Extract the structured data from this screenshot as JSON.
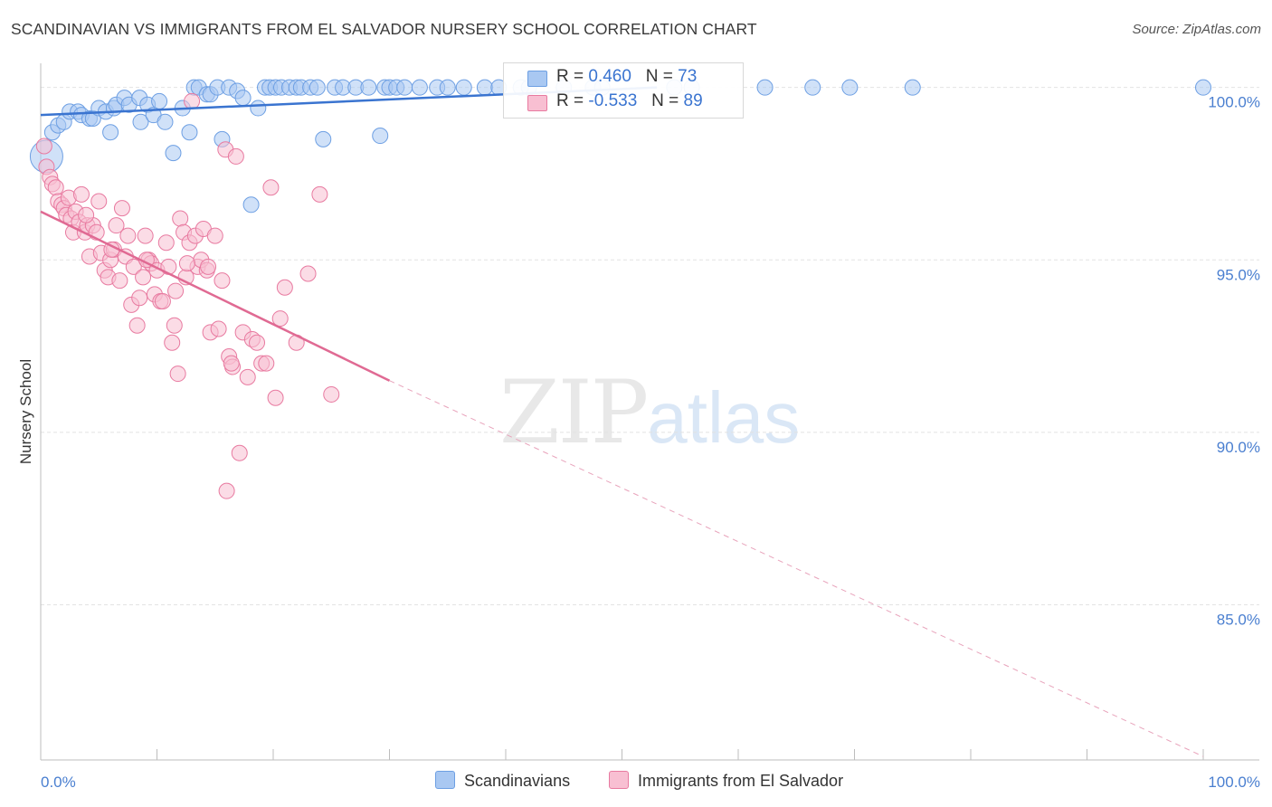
{
  "title": "SCANDINAVIAN VS IMMIGRANTS FROM EL SALVADOR NURSERY SCHOOL CORRELATION CHART",
  "source": "Source: ZipAtlas.com",
  "watermark": {
    "zip": "ZIP",
    "atlas": "atlas"
  },
  "legend_box": {
    "rows": [
      {
        "r_label": "R =",
        "r_value": "0.460",
        "n_label": "N =",
        "n_value": "73",
        "color": "#a9c8f2"
      },
      {
        "r_label": "R =",
        "r_value": "-0.533",
        "n_label": "N =",
        "n_value": "89",
        "color": "#f8bfd2"
      }
    ]
  },
  "bottom_legend": [
    "Scandinavians",
    "Immigrants from El Salvador"
  ],
  "chart_data": {
    "type": "scatter",
    "title": "SCANDINAVIAN VS IMMIGRANTS FROM EL SALVADOR NURSERY SCHOOL CORRELATION CHART",
    "xlabel": "",
    "ylabel": "Nursery School",
    "xlim": [
      0,
      100
    ],
    "ylim": [
      80.5,
      100.7
    ],
    "x_tick_labels": [
      "0.0%",
      "100.0%"
    ],
    "y_ticks": [
      100,
      95,
      90,
      85
    ],
    "y_tick_labels": [
      "100.0%",
      "95.0%",
      "90.0%",
      "85.0%"
    ],
    "grid": true,
    "series": [
      {
        "name": "Scandinavians",
        "color": "#6d9fe3",
        "fill": "#a9c8f2",
        "points": [
          [
            0.5,
            98.0
          ],
          [
            1.0,
            98.7
          ],
          [
            1.5,
            98.9
          ],
          [
            2.0,
            99.0
          ],
          [
            2.5,
            99.3
          ],
          [
            3.2,
            99.3
          ],
          [
            3.5,
            99.2
          ],
          [
            4.2,
            99.1
          ],
          [
            4.5,
            99.1
          ],
          [
            5.0,
            99.4
          ],
          [
            5.6,
            99.3
          ],
          [
            6.0,
            98.7
          ],
          [
            6.3,
            99.4
          ],
          [
            6.5,
            99.5
          ],
          [
            7.2,
            99.7
          ],
          [
            7.6,
            99.5
          ],
          [
            8.5,
            99.7
          ],
          [
            8.6,
            99.0
          ],
          [
            9.2,
            99.5
          ],
          [
            9.7,
            99.2
          ],
          [
            10.2,
            99.6
          ],
          [
            10.7,
            99.0
          ],
          [
            11.4,
            98.1
          ],
          [
            12.2,
            99.4
          ],
          [
            12.8,
            98.7
          ],
          [
            13.2,
            100.0
          ],
          [
            13.6,
            100.0
          ],
          [
            14.3,
            99.8
          ],
          [
            14.6,
            99.8
          ],
          [
            15.2,
            100.0
          ],
          [
            15.6,
            98.5
          ],
          [
            16.2,
            100.0
          ],
          [
            16.9,
            99.9
          ],
          [
            17.4,
            99.7
          ],
          [
            18.1,
            96.6
          ],
          [
            18.7,
            99.4
          ],
          [
            19.3,
            100.0
          ],
          [
            19.7,
            100.0
          ],
          [
            20.2,
            100.0
          ],
          [
            20.7,
            100.0
          ],
          [
            21.4,
            100.0
          ],
          [
            22.0,
            100.0
          ],
          [
            22.4,
            100.0
          ],
          [
            23.2,
            100.0
          ],
          [
            23.8,
            100.0
          ],
          [
            24.3,
            98.5
          ],
          [
            25.3,
            100.0
          ],
          [
            26.0,
            100.0
          ],
          [
            27.1,
            100.0
          ],
          [
            28.2,
            100.0
          ],
          [
            29.2,
            98.6
          ],
          [
            29.6,
            100.0
          ],
          [
            30.0,
            100.0
          ],
          [
            30.6,
            100.0
          ],
          [
            31.3,
            100.0
          ],
          [
            32.6,
            100.0
          ],
          [
            34.1,
            100.0
          ],
          [
            35.0,
            100.0
          ],
          [
            36.4,
            100.0
          ],
          [
            38.2,
            100.0
          ],
          [
            39.4,
            100.0
          ],
          [
            41.3,
            100.0
          ],
          [
            42.0,
            100.0
          ],
          [
            45.0,
            100.0
          ],
          [
            47.5,
            100.0
          ],
          [
            48.3,
            100.0
          ],
          [
            56.0,
            100.0
          ],
          [
            62.3,
            100.0
          ],
          [
            66.4,
            100.0
          ],
          [
            69.6,
            100.0
          ],
          [
            75.0,
            100.0
          ],
          [
            100.0,
            100.0
          ],
          [
            54.5,
            100.0
          ]
        ],
        "trend": {
          "x": [
            0,
            53
          ],
          "y": [
            99.2,
            100.0
          ],
          "style": "solid"
        }
      },
      {
        "name": "Immigrants from El Salvador",
        "color": "#e87aa0",
        "fill": "#f8bfd2",
        "points": [
          [
            0.3,
            98.3
          ],
          [
            0.5,
            97.7
          ],
          [
            0.8,
            97.4
          ],
          [
            1.0,
            97.2
          ],
          [
            1.3,
            97.1
          ],
          [
            1.5,
            96.7
          ],
          [
            1.8,
            96.6
          ],
          [
            2.0,
            96.5
          ],
          [
            2.2,
            96.3
          ],
          [
            2.4,
            96.8
          ],
          [
            2.6,
            96.2
          ],
          [
            2.8,
            95.8
          ],
          [
            3.0,
            96.4
          ],
          [
            3.3,
            96.1
          ],
          [
            3.5,
            96.9
          ],
          [
            3.8,
            95.8
          ],
          [
            4.0,
            96.0
          ],
          [
            4.2,
            95.1
          ],
          [
            4.5,
            96.0
          ],
          [
            4.8,
            95.8
          ],
          [
            5.0,
            96.7
          ],
          [
            5.2,
            95.2
          ],
          [
            5.5,
            94.7
          ],
          [
            5.8,
            94.5
          ],
          [
            6.0,
            95.0
          ],
          [
            6.3,
            95.3
          ],
          [
            6.5,
            96.0
          ],
          [
            6.8,
            94.4
          ],
          [
            7.0,
            96.5
          ],
          [
            7.3,
            95.1
          ],
          [
            7.5,
            95.7
          ],
          [
            7.8,
            93.7
          ],
          [
            8.0,
            94.8
          ],
          [
            8.3,
            93.1
          ],
          [
            8.5,
            93.9
          ],
          [
            8.8,
            94.5
          ],
          [
            9.0,
            95.7
          ],
          [
            9.3,
            95.0
          ],
          [
            9.5,
            94.9
          ],
          [
            9.8,
            94.0
          ],
          [
            10.0,
            94.7
          ],
          [
            10.3,
            93.8
          ],
          [
            10.5,
            93.8
          ],
          [
            10.8,
            95.5
          ],
          [
            11.0,
            94.8
          ],
          [
            11.3,
            92.6
          ],
          [
            11.5,
            93.1
          ],
          [
            11.8,
            91.7
          ],
          [
            12.0,
            96.2
          ],
          [
            12.3,
            95.8
          ],
          [
            12.5,
            94.5
          ],
          [
            12.8,
            95.5
          ],
          [
            13.0,
            99.6
          ],
          [
            13.3,
            95.7
          ],
          [
            13.5,
            94.8
          ],
          [
            13.8,
            95.0
          ],
          [
            14.0,
            95.9
          ],
          [
            14.3,
            94.7
          ],
          [
            14.6,
            92.9
          ],
          [
            15.0,
            95.7
          ],
          [
            15.3,
            93.0
          ],
          [
            15.6,
            94.4
          ],
          [
            15.9,
            98.2
          ],
          [
            16.2,
            92.2
          ],
          [
            16.5,
            91.9
          ],
          [
            16.8,
            98.0
          ],
          [
            17.1,
            89.4
          ],
          [
            17.4,
            92.9
          ],
          [
            17.8,
            91.6
          ],
          [
            18.2,
            92.7
          ],
          [
            18.6,
            92.6
          ],
          [
            19.0,
            92.0
          ],
          [
            19.4,
            92.0
          ],
          [
            19.8,
            97.1
          ],
          [
            20.2,
            91.0
          ],
          [
            20.6,
            93.3
          ],
          [
            21.0,
            94.2
          ],
          [
            22.0,
            92.6
          ],
          [
            23.0,
            94.6
          ],
          [
            24.0,
            96.9
          ],
          [
            25.0,
            91.1
          ],
          [
            16.0,
            88.3
          ],
          [
            3.9,
            96.3
          ],
          [
            6.1,
            95.3
          ],
          [
            9.1,
            95.0
          ],
          [
            12.6,
            94.9
          ],
          [
            14.4,
            94.8
          ],
          [
            11.6,
            94.1
          ],
          [
            16.4,
            92.0
          ]
        ],
        "trend": {
          "x": [
            0,
            30
          ],
          "y": [
            96.4,
            91.5
          ],
          "style": "solid"
        },
        "trend_extension": {
          "x": [
            30,
            100
          ],
          "y": [
            91.5,
            80.6
          ],
          "style": "dashed"
        }
      }
    ]
  }
}
